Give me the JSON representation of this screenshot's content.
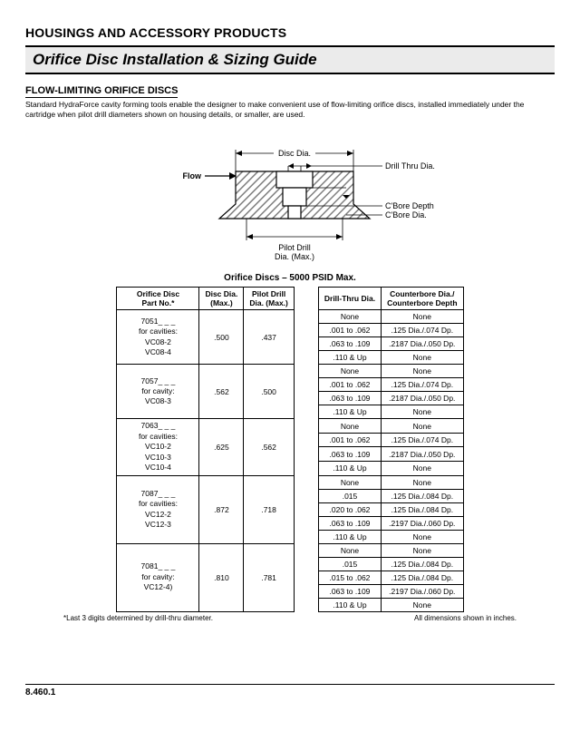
{
  "header": "HOUSINGS AND ACCESSORY PRODUCTS",
  "title": "Orifice Disc Installation & Sizing Guide",
  "section": "FLOW-LIMITING ORIFICE DISCS",
  "intro": "Standard HydraForce cavity forming tools enable the designer to make convenient use of flow-limiting orifice discs, installed immediately under the cartridge when pilot drill diameters shown on housing details, or smaller, are used.",
  "diagram_labels": {
    "disc_dia": "Disc Dia.",
    "drill_thru": "Drill Thru Dia.",
    "flow": "Flow",
    "cbore_depth": "C'Bore Depth",
    "cbore_dia": "C'Bore Dia.",
    "pilot": "Pilot Drill\nDia. (Max.)"
  },
  "diagram_colors": {
    "hatch": "#808080",
    "bg": "#ffffff",
    "line": "#000000"
  },
  "table_caption": "Orifice Discs – 5000 PSID Max.",
  "columns": [
    "Orifice Disc\nPart No.*",
    "Disc Dia.\n(Max.)",
    "Pilot Drill\nDia. (Max.)",
    "Drill-Thru Dia.",
    "Counterbore Dia./\nCounterbore Depth"
  ],
  "groups": [
    {
      "part": "7051_ _ _\nfor cavities:\nVC08-2\nVC08-4",
      "disc_dia": ".500",
      "pilot": ".437",
      "rows": [
        {
          "dt": "None",
          "cb": "None"
        },
        {
          "dt": ".001 to .062",
          "cb": ".125 Dia./.074 Dp."
        },
        {
          "dt": ".063 to .109",
          "cb": ".2187 Dia./.050 Dp."
        },
        {
          "dt": ".110 & Up",
          "cb": "None"
        }
      ]
    },
    {
      "part": "7057_ _ _\nfor cavity:\nVC08-3",
      "disc_dia": ".562",
      "pilot": ".500",
      "rows": [
        {
          "dt": "None",
          "cb": "None"
        },
        {
          "dt": ".001 to .062",
          "cb": ".125 Dia./.074 Dp."
        },
        {
          "dt": ".063 to .109",
          "cb": ".2187 Dia./.050 Dp."
        },
        {
          "dt": ".110 & Up",
          "cb": "None"
        }
      ]
    },
    {
      "part": "7063_ _ _\nfor cavities:\nVC10-2\nVC10-3\nVC10-4",
      "disc_dia": ".625",
      "pilot": ".562",
      "rows": [
        {
          "dt": "None",
          "cb": "None"
        },
        {
          "dt": ".001 to .062",
          "cb": ".125 Dia./.074 Dp."
        },
        {
          "dt": ".063 to .109",
          "cb": ".2187 Dia./.050 Dp."
        },
        {
          "dt": ".110 & Up",
          "cb": "None"
        }
      ]
    },
    {
      "part": "7087_ _ _\nfor cavities:\nVC12-2\nVC12-3",
      "disc_dia": ".872",
      "pilot": ".718",
      "rows": [
        {
          "dt": "None",
          "cb": "None"
        },
        {
          "dt": ".015",
          "cb": ".125 Dia./.084 Dp."
        },
        {
          "dt": ".020 to .062",
          "cb": ".125 Dia./.084 Dp."
        },
        {
          "dt": ".063 to .109",
          "cb": ".2197 Dia./.060 Dp."
        },
        {
          "dt": ".110 & Up",
          "cb": "None"
        }
      ]
    },
    {
      "part": "7081_ _ _\nfor cavity:\nVC12-4)",
      "disc_dia": ".810",
      "pilot": ".781",
      "rows": [
        {
          "dt": "None",
          "cb": "None"
        },
        {
          "dt": ".015",
          "cb": ".125 Dia./.084 Dp."
        },
        {
          "dt": ".015 to .062",
          "cb": ".125 Dia./.084 Dp."
        },
        {
          "dt": ".063 to .109",
          "cb": ".2197 Dia./.060 Dp."
        },
        {
          "dt": ".110 & Up",
          "cb": "None"
        }
      ]
    }
  ],
  "footnote_left": "*Last 3 digits determined by drill-thru diameter.",
  "footnote_right": "All dimensions shown in inches.",
  "page_number": "8.460.1"
}
